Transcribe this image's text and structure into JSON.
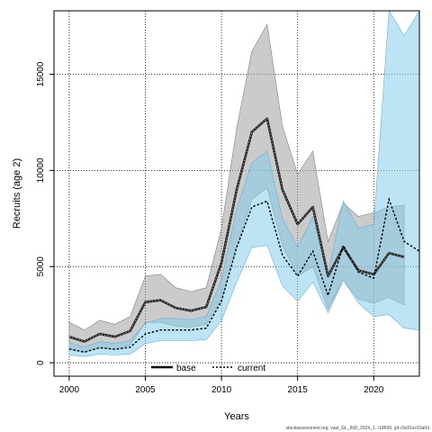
{
  "chart_data": {
    "type": "line",
    "xlabel": "Years",
    "ylabel": "Recruits (age 2)",
    "xlim": [
      1999,
      2023
    ],
    "ylim": [
      -700,
      18300
    ],
    "xticks": [
      2000,
      2005,
      2010,
      2015,
      2020
    ],
    "yticks": [
      0,
      5000,
      10000,
      15000
    ],
    "grid": true,
    "legend_position": "bottom-center",
    "series": [
      {
        "name": "base",
        "style": "solid-with-dotted-overlay",
        "color": "#000000",
        "band_color": "#a0a0a0",
        "x": [
          2000,
          2001,
          2002,
          2003,
          2004,
          2005,
          2006,
          2007,
          2008,
          2009,
          2010,
          2011,
          2012,
          2013,
          2014,
          2015,
          2016,
          2017,
          2018,
          2019,
          2020,
          2021,
          2022
        ],
        "values": [
          1350,
          1100,
          1500,
          1350,
          1650,
          3150,
          3250,
          2850,
          2700,
          2900,
          5200,
          9000,
          12000,
          12700,
          9000,
          7200,
          8100,
          4500,
          6000,
          4800,
          4600,
          5700,
          5500
        ],
        "lower": [
          700,
          550,
          800,
          700,
          900,
          2100,
          2100,
          1900,
          1850,
          2000,
          3300,
          6000,
          8500,
          9100,
          6100,
          4500,
          5000,
          2800,
          4300,
          3300,
          3100,
          3400,
          3000
        ],
        "upper": [
          2100,
          1700,
          2200,
          2000,
          2400,
          4500,
          4600,
          3900,
          3700,
          3900,
          7000,
          12200,
          16200,
          17600,
          12300,
          9800,
          11000,
          6300,
          8300,
          7600,
          7800,
          8100,
          8200
        ]
      },
      {
        "name": "current",
        "style": "dotted",
        "color": "#000000",
        "band_color": "#87ceeb",
        "x": [
          2000,
          2001,
          2002,
          2003,
          2004,
          2005,
          2006,
          2007,
          2008,
          2009,
          2010,
          2011,
          2012,
          2013,
          2014,
          2015,
          2016,
          2017,
          2018,
          2019,
          2020,
          2021,
          2022,
          2023
        ],
        "values": [
          720,
          550,
          780,
          700,
          800,
          1500,
          1700,
          1700,
          1700,
          1800,
          3200,
          6000,
          8100,
          8400,
          5600,
          4500,
          5800,
          3500,
          6100,
          4700,
          4400,
          8500,
          6300,
          5800
        ],
        "lower": [
          400,
          320,
          450,
          400,
          450,
          1000,
          1150,
          1150,
          1150,
          1200,
          2200,
          4200,
          6000,
          6100,
          4000,
          3200,
          4200,
          2600,
          4300,
          3100,
          2400,
          2500,
          1800,
          1700
        ],
        "upper": [
          1050,
          800,
          1100,
          1000,
          1150,
          2050,
          2300,
          2300,
          2250,
          2400,
          4300,
          8000,
          10400,
          11000,
          7500,
          6000,
          7600,
          4600,
          8400,
          7000,
          7200,
          18300,
          17000,
          18300
        ]
      }
    ]
  },
  "footer": "stockassessment.org, vast_GL_IND_2024_1, r18600, git:c9c81ec53a0d"
}
